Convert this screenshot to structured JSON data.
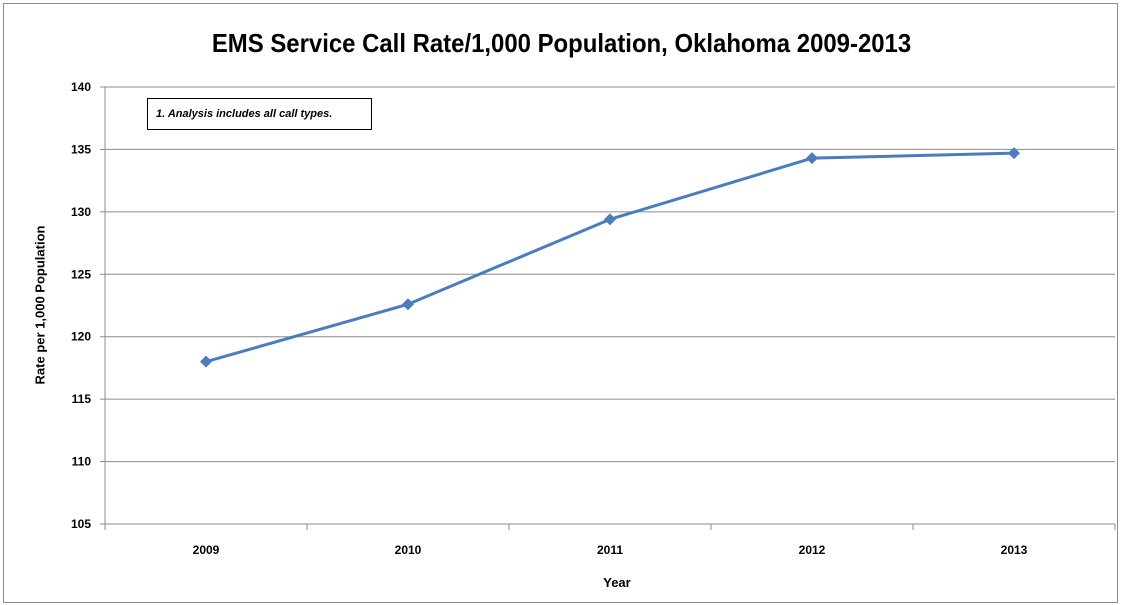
{
  "chart_data": {
    "type": "line",
    "title": "EMS Service Call Rate/1,000 Population, Oklahoma 2009-2013",
    "xlabel": "Year",
    "ylabel": "Rate per 1,000 Population",
    "categories": [
      "2009",
      "2010",
      "2011",
      "2012",
      "2013"
    ],
    "series": [
      {
        "name": "",
        "values": [
          118.0,
          122.6,
          129.4,
          134.3,
          134.7
        ],
        "color": "#4a7ebb",
        "marker": "diamond"
      }
    ],
    "ylim": [
      105,
      140
    ],
    "yticks": [
      105,
      110,
      115,
      120,
      125,
      130,
      135,
      140
    ],
    "grid": true,
    "legend": "none",
    "annotation": "1. Analysis  includes all call types."
  }
}
